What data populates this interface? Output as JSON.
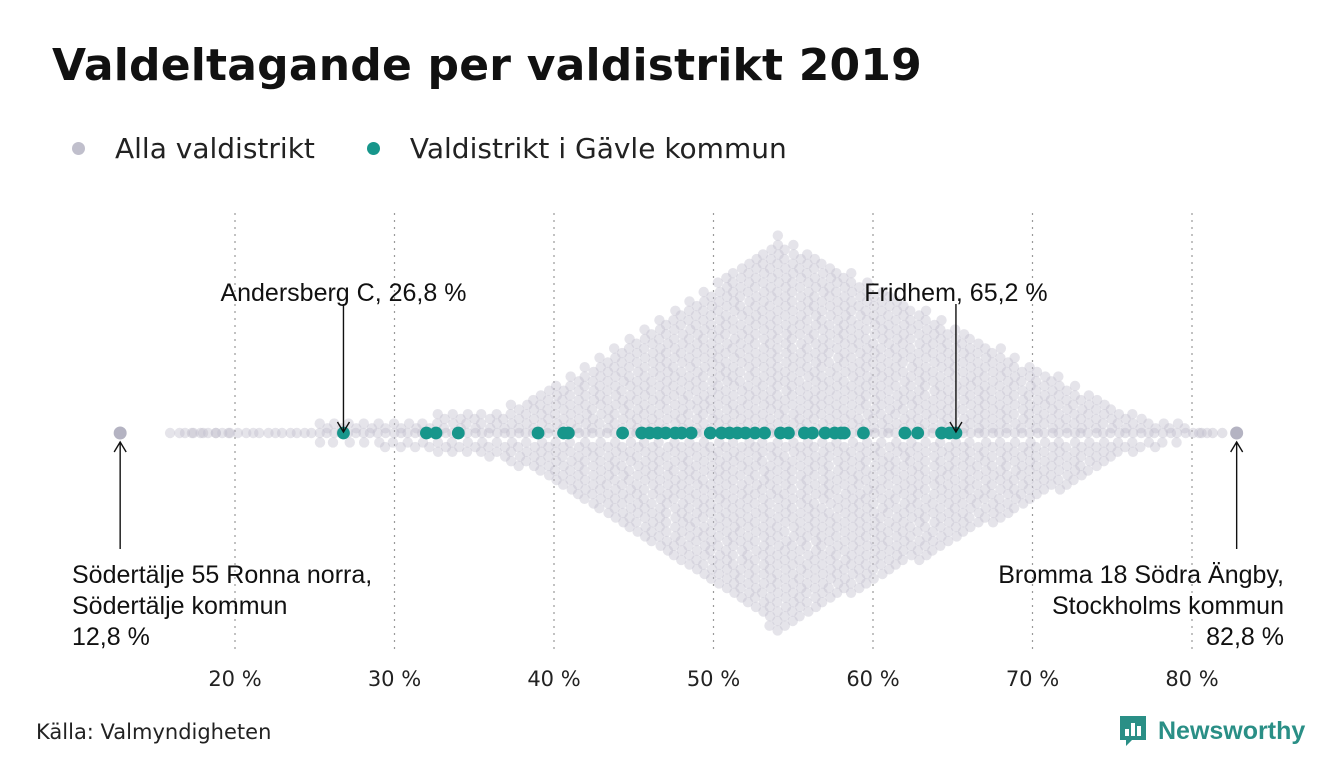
{
  "chart_data": {
    "type": "scatter",
    "title": "Valdeltagande per valdistrikt 2019",
    "x_ticks": [
      20,
      30,
      40,
      50,
      60,
      70,
      80
    ],
    "x_tick_labels": [
      "20 %",
      "30 %",
      "40 %",
      "50 %",
      "60 %",
      "70 %",
      "80 %"
    ],
    "xlim": [
      12,
      84
    ],
    "grid": "vertical dotted",
    "legend_position": "top-left",
    "series": [
      {
        "name": "Alla valdistrikt",
        "color": "#c0bfcc",
        "distribution": "beeswarm",
        "min": 12.8,
        "max": 82.8,
        "peak": 54
      },
      {
        "name": "Valdistrikt i Gävle kommun",
        "color": "#17968b",
        "values": [
          26.8,
          32.0,
          32.6,
          34.0,
          39.0,
          40.6,
          40.9,
          44.3,
          45.5,
          46.0,
          46.5,
          47.0,
          47.6,
          48.0,
          48.6,
          49.8,
          50.5,
          51.0,
          51.5,
          52.0,
          52.6,
          53.2,
          54.2,
          54.7,
          55.7,
          56.2,
          57.0,
          57.6,
          58.0,
          58.2,
          59.4,
          62.0,
          62.8,
          64.3,
          64.8,
          65.2
        ]
      }
    ],
    "annotations": [
      {
        "x": 26.8,
        "lines": [
          "Andersberg C, 26,8 %"
        ],
        "position": "above"
      },
      {
        "x": 65.2,
        "lines": [
          "Fridhem, 65,2 %"
        ],
        "position": "above"
      },
      {
        "x": 12.8,
        "lines": [
          "Södertälje 55 Ronna norra,",
          "Södertälje kommun",
          "12,8 %"
        ],
        "position": "below-left"
      },
      {
        "x": 82.8,
        "lines": [
          "Bromma 18 Södra Ängby,",
          "Stockholms kommun",
          "82,8 %"
        ],
        "position": "below-right"
      }
    ]
  },
  "source": "Källa: Valmyndigheten",
  "brand": {
    "name": "Newsworthy",
    "color": "#2a8f86",
    "icon": "bar-chart-speech-bubble-icon"
  }
}
